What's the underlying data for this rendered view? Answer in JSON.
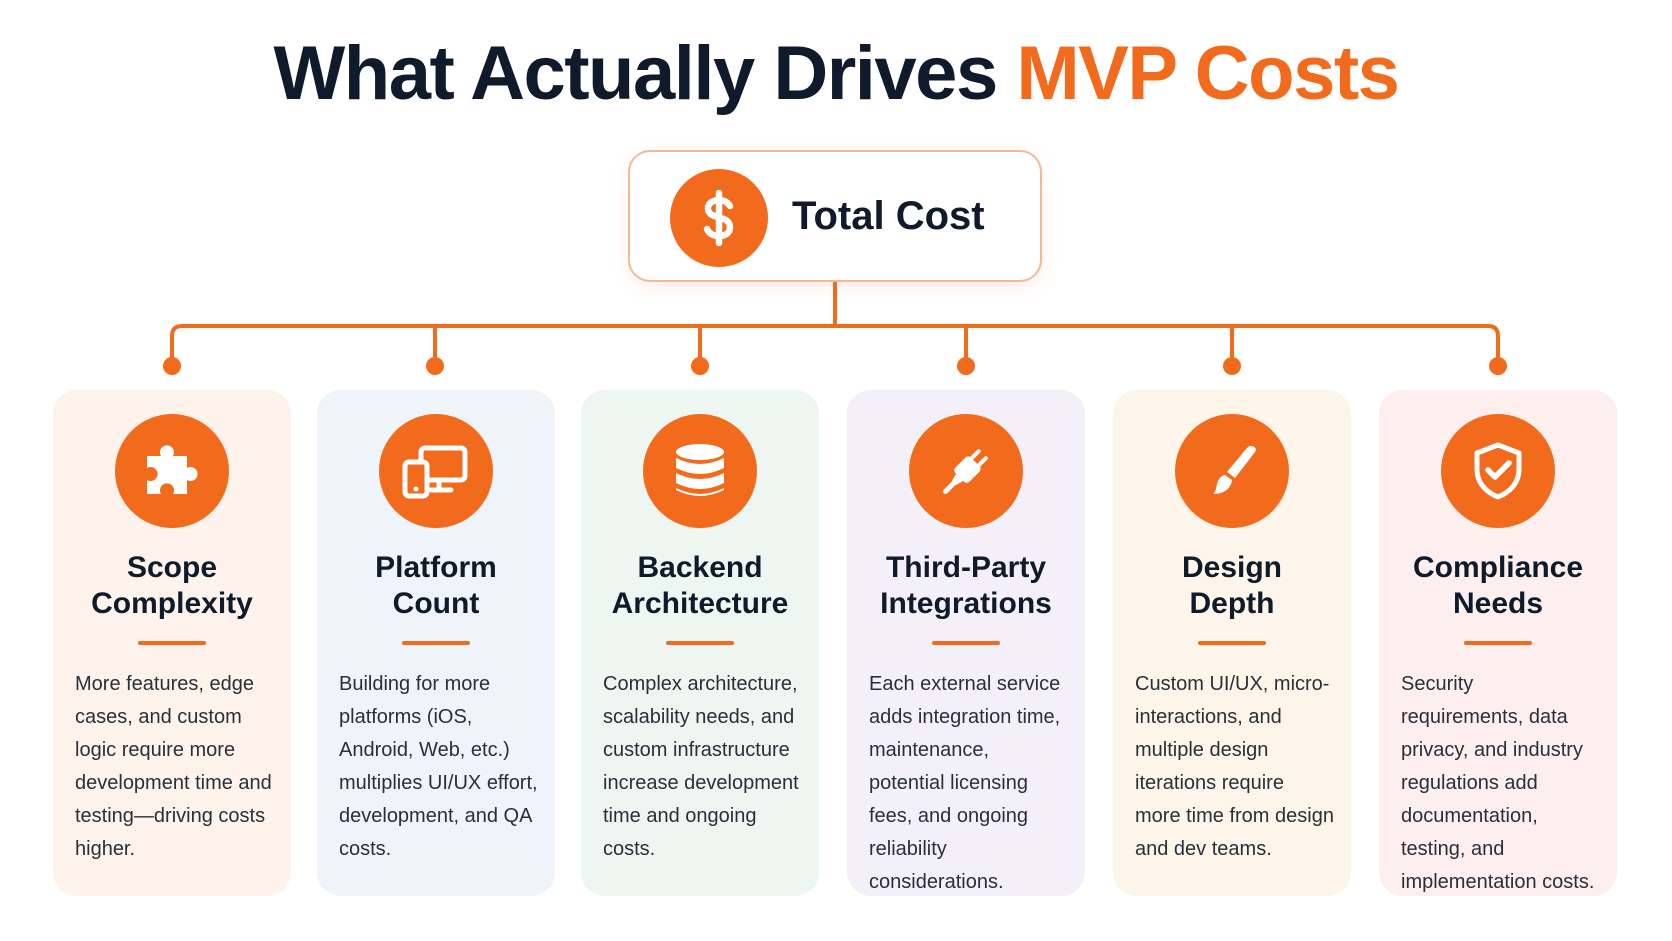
{
  "title": {
    "main": "What Actually Drives ",
    "accent": "MVP Costs"
  },
  "root": {
    "label": "Total Cost",
    "icon": "dollar-icon"
  },
  "colors": {
    "accent": "#f26a1b",
    "text": "#0f1a2a",
    "body": "#2a2f38"
  },
  "factors": [
    {
      "title_line1": "Scope",
      "title_line2": "Complexity",
      "icon": "puzzle-icon",
      "bg": "#fdf3ec",
      "description": "More features, edge cases, and custom logic require more development time and testing—driving costs higher."
    },
    {
      "title_line1": "Platform",
      "title_line2": "Count",
      "icon": "devices-icon",
      "bg": "#eef4f9",
      "description": "Building for more platforms (iOS, Android, Web, etc.) multiplies UI/UX effort, development, and QA costs."
    },
    {
      "title_line1": "Backend",
      "title_line2": "Architecture",
      "icon": "database-icon",
      "bg": "#eef6f1",
      "description": "Complex architecture, scalability needs, and custom infrastructure increase development time and ongoing costs."
    },
    {
      "title_line1": "Third-Party",
      "title_line2": "Integrations",
      "icon": "plug-icon",
      "bg": "#f4f0f9",
      "description": "Each external service adds integration time, maintenance, potential licensing fees, and ongoing reliability considerations."
    },
    {
      "title_line1": "Design",
      "title_line2": "Depth",
      "icon": "brush-icon",
      "bg": "#fdf4ea",
      "description": "Custom UI/UX, micro-interactions, and multiple design iterations require more time from design and dev teams."
    },
    {
      "title_line1": "Compliance",
      "title_line2": "Needs",
      "icon": "shield-check-icon",
      "bg": "#fcefed",
      "description": "Security requirements, data privacy, and industry regulations add documentation, testing, and implementation costs."
    }
  ]
}
